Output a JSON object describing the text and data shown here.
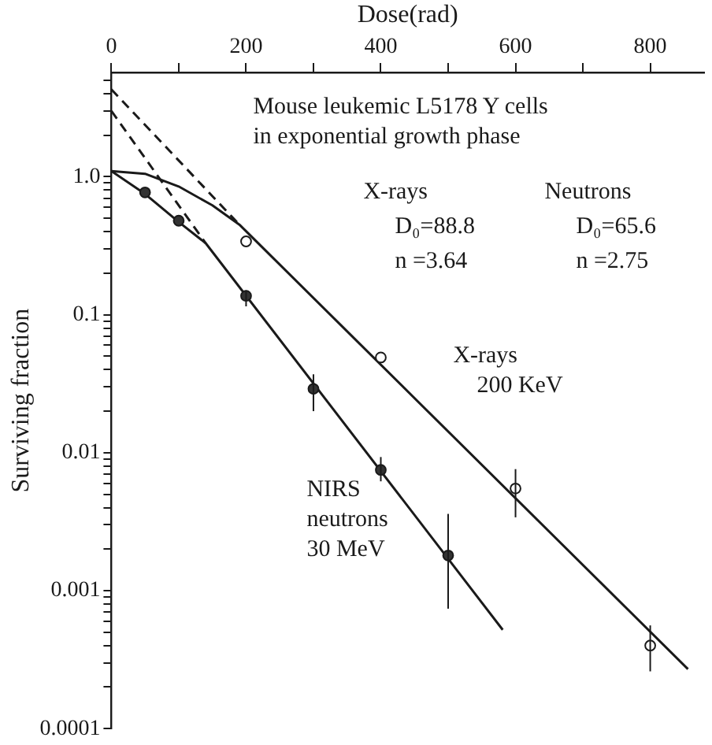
{
  "chart_data": {
    "type": "scatter",
    "xlabel": "Dose(rad)",
    "ylabel": "Surviving fraction",
    "log": "y",
    "grid": false,
    "legend": false,
    "xlim": [
      0,
      880
    ],
    "xticks": [
      0,
      {
        "value": 100,
        "label": null
      },
      200,
      {
        "value": 300,
        "label": null
      },
      400,
      {
        "value": 500,
        "label": null
      },
      600,
      {
        "value": 700,
        "label": null
      },
      800
    ],
    "ylim": [
      0.0001,
      5.7
    ],
    "yticks": [
      {
        "value": 0.0001,
        "label": "0.0001"
      },
      {
        "value": 0.0002,
        "label": null
      },
      {
        "value": 0.0003,
        "label": null
      },
      {
        "value": 0.0004,
        "label": null
      },
      {
        "value": 0.0005,
        "label": null
      },
      {
        "value": 0.0006,
        "label": null
      },
      {
        "value": 0.0007,
        "label": null
      },
      {
        "value": 0.0008,
        "label": null
      },
      {
        "value": 0.0009,
        "label": null
      },
      {
        "value": 0.001,
        "label": "0.001"
      },
      {
        "value": 0.002,
        "label": null
      },
      {
        "value": 0.003,
        "label": null
      },
      {
        "value": 0.004,
        "label": null
      },
      {
        "value": 0.005,
        "label": null
      },
      {
        "value": 0.006,
        "label": null
      },
      {
        "value": 0.007,
        "label": null
      },
      {
        "value": 0.008,
        "label": null
      },
      {
        "value": 0.009,
        "label": null
      },
      {
        "value": 0.01,
        "label": "0.01"
      },
      {
        "value": 0.02,
        "label": null
      },
      {
        "value": 0.03,
        "label": null
      },
      {
        "value": 0.04,
        "label": null
      },
      {
        "value": 0.05,
        "label": null
      },
      {
        "value": 0.06,
        "label": null
      },
      {
        "value": 0.07,
        "label": null
      },
      {
        "value": 0.08,
        "label": null
      },
      {
        "value": 0.09,
        "label": null
      },
      {
        "value": 0.1,
        "label": "0.1"
      },
      {
        "value": 0.2,
        "label": null
      },
      {
        "value": 0.3,
        "label": null
      },
      {
        "value": 0.4,
        "label": null
      },
      {
        "value": 0.5,
        "label": null
      },
      {
        "value": 0.6,
        "label": null
      },
      {
        "value": 0.7,
        "label": null
      },
      {
        "value": 0.8,
        "label": null
      },
      {
        "value": 0.9,
        "label": null
      },
      {
        "value": 1,
        "label": "1.0"
      },
      {
        "value": 2,
        "label": null
      },
      {
        "value": 3,
        "label": null
      },
      {
        "value": 4,
        "label": null
      },
      {
        "value": 5,
        "label": null
      }
    ],
    "series": [
      {
        "marker": "circle",
        "color": "#ffffff",
        "x": [
          200,
          400,
          600,
          800
        ],
        "values": [
          0.34,
          0.049,
          0.0055,
          0.0004
        ],
        "errors": [
          null,
          null,
          [
            0.0034,
            0.0076
          ],
          [
            0.00026,
            0.00056
          ]
        ]
      },
      {
        "marker": "circle",
        "color": "#333333",
        "x": [
          50,
          100,
          200,
          300,
          400,
          500
        ],
        "values": [
          0.77,
          0.48,
          0.137,
          0.029,
          0.0075,
          0.0018
        ],
        "errors": [
          null,
          null,
          [
            0.115,
            0.15
          ],
          [
            0.02,
            0.037
          ],
          [
            0.0062,
            0.0093
          ],
          [
            0.00074,
            0.0036
          ]
        ]
      },
      {
        "type": "line",
        "marker": "none",
        "line_style": "solid",
        "color": "#1a1a1a",
        "x": [
          0,
          50,
          100,
          150,
          190,
          856
        ],
        "values": [
          1.1,
          1.05,
          0.85,
          0.62,
          0.45,
          0.00027
        ]
      },
      {
        "type": "line",
        "marker": "none",
        "line_style": "solid",
        "color": "#1a1a1a",
        "x": [
          0,
          50,
          100,
          140,
          581
        ],
        "values": [
          1.1,
          0.75,
          0.47,
          0.33,
          0.00052
        ]
      },
      {
        "type": "line",
        "marker": "none",
        "line_style": "dashed",
        "color": "#1a1a1a",
        "x": [
          0,
          190
        ],
        "values": [
          4.3,
          0.45
        ]
      },
      {
        "type": "line",
        "marker": "none",
        "line_style": "dashed",
        "color": "#1a1a1a",
        "x": [
          0,
          140
        ],
        "values": [
          3.0,
          0.33
        ]
      }
    ],
    "annotations": [
      "Mouse leukemic L5178 Y cells\nin exponential growth phase",
      "X-rays",
      "D₀=88.8",
      "n =3.64",
      "Neutrons",
      "D₀=65.6",
      "n =2.75",
      "X-rays\n    200 KeV",
      "NIRS\nneutrons\n30 MeV"
    ]
  }
}
